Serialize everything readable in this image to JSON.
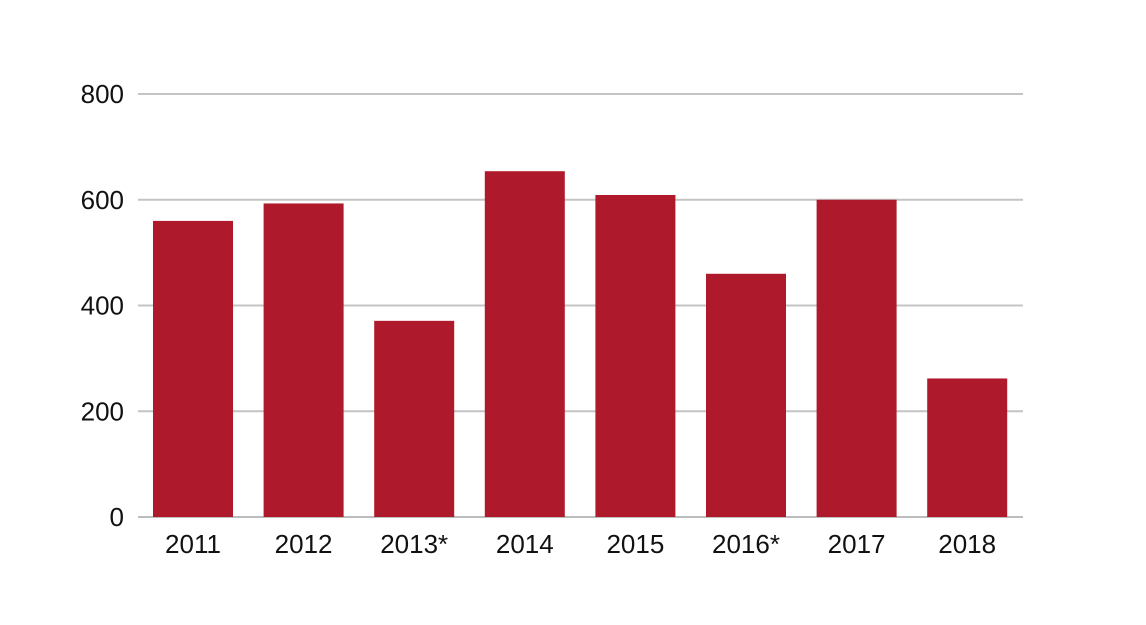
{
  "chart_data": {
    "type": "bar",
    "categories": [
      "2011",
      "2012",
      "2013*",
      "2014",
      "2015",
      "2016*",
      "2017",
      "2018"
    ],
    "values": [
      560,
      593,
      371,
      654,
      609,
      460,
      600,
      262
    ],
    "ylim": [
      0,
      800
    ],
    "yticks": [
      0,
      200,
      400,
      600,
      800
    ],
    "grid": true,
    "bar_color": "#ae1a2c",
    "grid_color": "#c4c4c4",
    "title": "",
    "xlabel": "",
    "ylabel": ""
  }
}
